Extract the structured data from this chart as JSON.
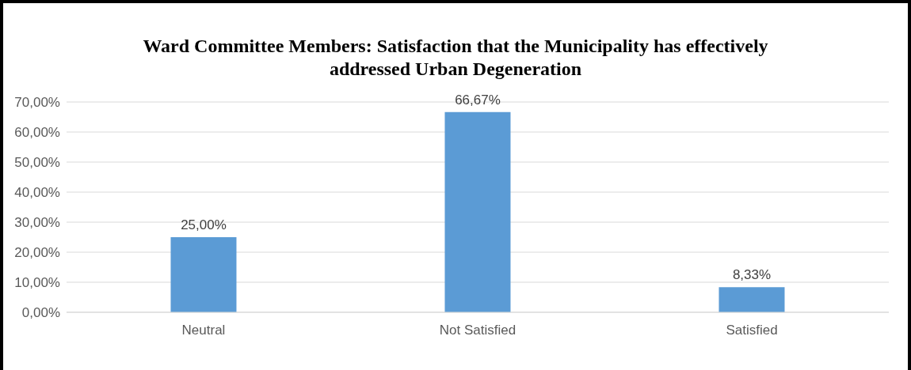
{
  "chart_data": {
    "type": "bar",
    "title": "Ward Committee Members: Satisfaction that the Municipality has effectively addressed Urban Degeneration",
    "categories": [
      "Neutral",
      "Not Satisfied",
      "Satisfied"
    ],
    "values": [
      25.0,
      66.67,
      8.33
    ],
    "value_labels": [
      "25,00%",
      "66,67%",
      "8,33%"
    ],
    "color": "#5b9bd5",
    "ylim": [
      0,
      70
    ],
    "yticks": [
      {
        "value": 0,
        "label": "0,00%"
      },
      {
        "value": 10,
        "label": "10,00%"
      },
      {
        "value": 20,
        "label": "20,00%"
      },
      {
        "value": 30,
        "label": "30,00%"
      },
      {
        "value": 40,
        "label": "40,00%"
      },
      {
        "value": 50,
        "label": "50,00%"
      },
      {
        "value": 60,
        "label": "60,00%"
      },
      {
        "value": 70,
        "label": "70,00%"
      }
    ],
    "grid": "y"
  }
}
